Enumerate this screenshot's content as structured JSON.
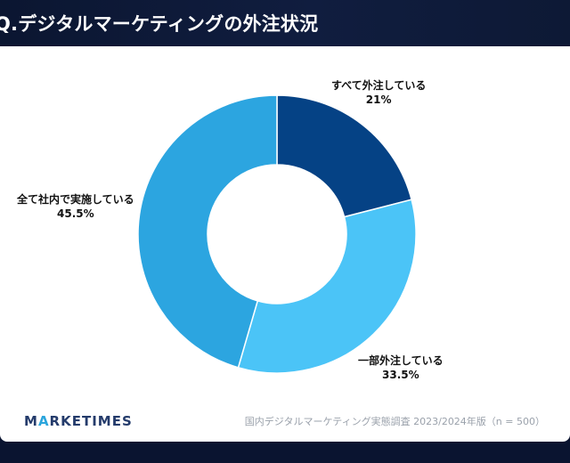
{
  "header": {
    "title": "Q.デジタルマーケティングの外注状況"
  },
  "colors": {
    "background": "#0a1430",
    "card": "#ffffff",
    "slice_1": "#054285",
    "slice_2": "#4bc4f7",
    "slice_3": "#2ca5e0"
  },
  "chart_data": {
    "type": "pie",
    "variant": "donut",
    "title": "",
    "slices": [
      {
        "label": "すべて外注している",
        "value": 21,
        "value_label": "21%",
        "color": "#054285"
      },
      {
        "label": "一部外注している",
        "value": 33.5,
        "value_label": "33.5%",
        "color": "#4bc4f7"
      },
      {
        "label": "全て社内で実施している",
        "value": 45.5,
        "value_label": "45.5%",
        "color": "#2ca5e0"
      }
    ]
  },
  "footer": {
    "logo_prefix": "M",
    "logo_accent": "A",
    "logo_suffix": "RKETIMES",
    "source": "国内デジタルマーケティング実態調査 2023/2024年版（n = 500）"
  }
}
